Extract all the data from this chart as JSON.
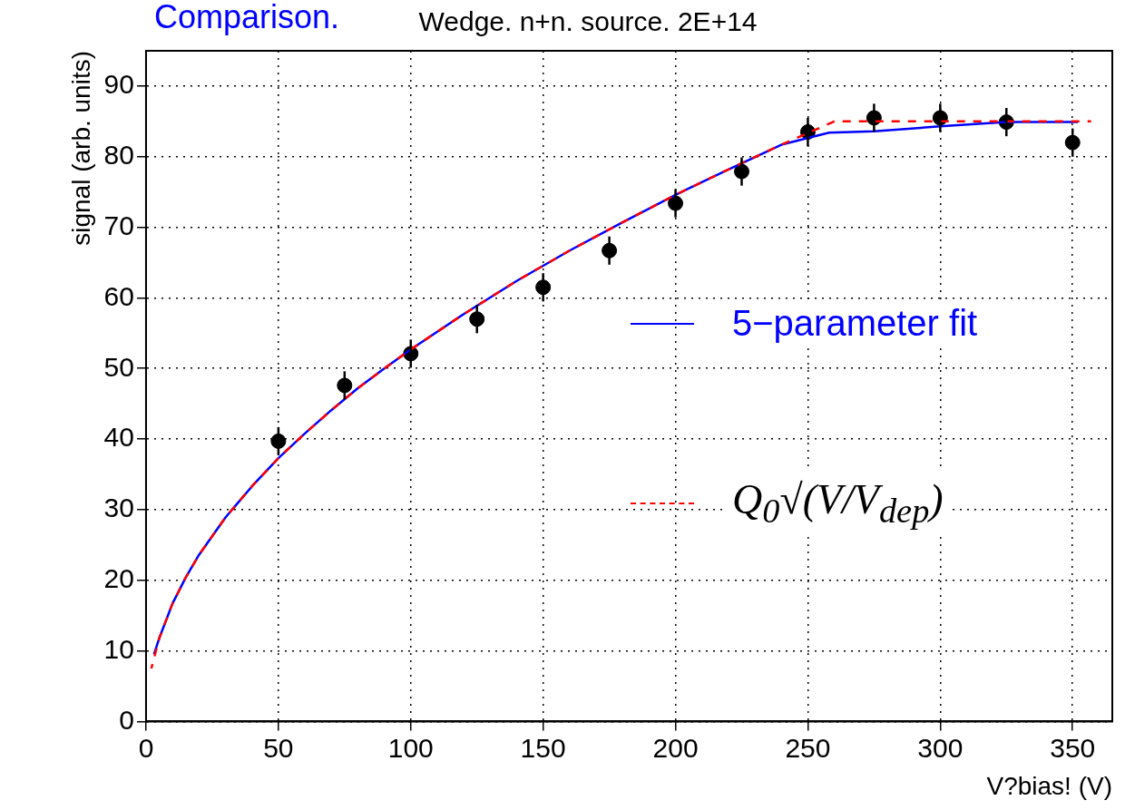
{
  "chart_data": {
    "type": "scatter",
    "title": "Wedge. n+n. source. 2E+14",
    "xlabel": "V?bias! (V)",
    "ylabel": "signal (arb. units)",
    "annotations": [
      "Comparison."
    ],
    "xlim": [
      0,
      365
    ],
    "xticks": [
      0,
      50,
      100,
      150,
      200,
      250,
      300,
      350
    ],
    "ylim": [
      0,
      95
    ],
    "yticks": [
      0,
      10,
      20,
      30,
      40,
      50,
      60,
      70,
      80,
      90
    ],
    "grid": true,
    "legend": "right",
    "series": [
      {
        "color": "#000000",
        "marker": "circle",
        "x": [
          50,
          75,
          100,
          125,
          150,
          175,
          200,
          225,
          250,
          275,
          300,
          325,
          350
        ],
        "values": [
          39.7,
          47.6,
          52.1,
          57,
          61.5,
          66.7,
          73.4,
          77.9,
          83.5,
          85.5,
          85.5,
          84.9,
          82
        ],
        "errors": [
          2,
          2,
          2,
          2,
          2,
          2,
          2,
          2,
          2,
          2,
          2,
          2,
          2
        ]
      },
      {
        "type": "line",
        "name": "5−parameter fit",
        "color": "#0000ff",
        "marker": "none",
        "line_style": "solid",
        "x": [
          3,
          5,
          10,
          15,
          20,
          30,
          40,
          50,
          60,
          70,
          80,
          90,
          100,
          120,
          140,
          160,
          180,
          200,
          220,
          240,
          258,
          275,
          300,
          325,
          352
        ],
        "values": [
          9.5,
          11.8,
          16.7,
          20.4,
          23.6,
          28.9,
          33.3,
          37.3,
          40.8,
          44.1,
          47.2,
          50,
          52.7,
          57.7,
          62.4,
          66.7,
          70.7,
          74.6,
          78.2,
          81.7,
          83.4,
          83.6,
          84.3,
          84.9,
          84.9
        ]
      },
      {
        "type": "line",
        "name": "Q$_{0}$√(V/V$_{dep}$)",
        "color": "#ff0000",
        "marker": "none",
        "line_style": "dashed",
        "x": [
          2,
          5,
          10,
          15,
          20,
          30,
          40,
          50,
          60,
          70,
          80,
          90,
          100,
          120,
          140,
          160,
          180,
          200,
          220,
          240,
          260,
          357
        ],
        "values": [
          7.5,
          11.8,
          16.7,
          20.4,
          23.6,
          28.9,
          33.3,
          37.3,
          40.8,
          44.1,
          47.2,
          50,
          52.7,
          57.7,
          62.4,
          66.7,
          70.7,
          74.6,
          78.2,
          81.7,
          85,
          85
        ]
      }
    ]
  }
}
